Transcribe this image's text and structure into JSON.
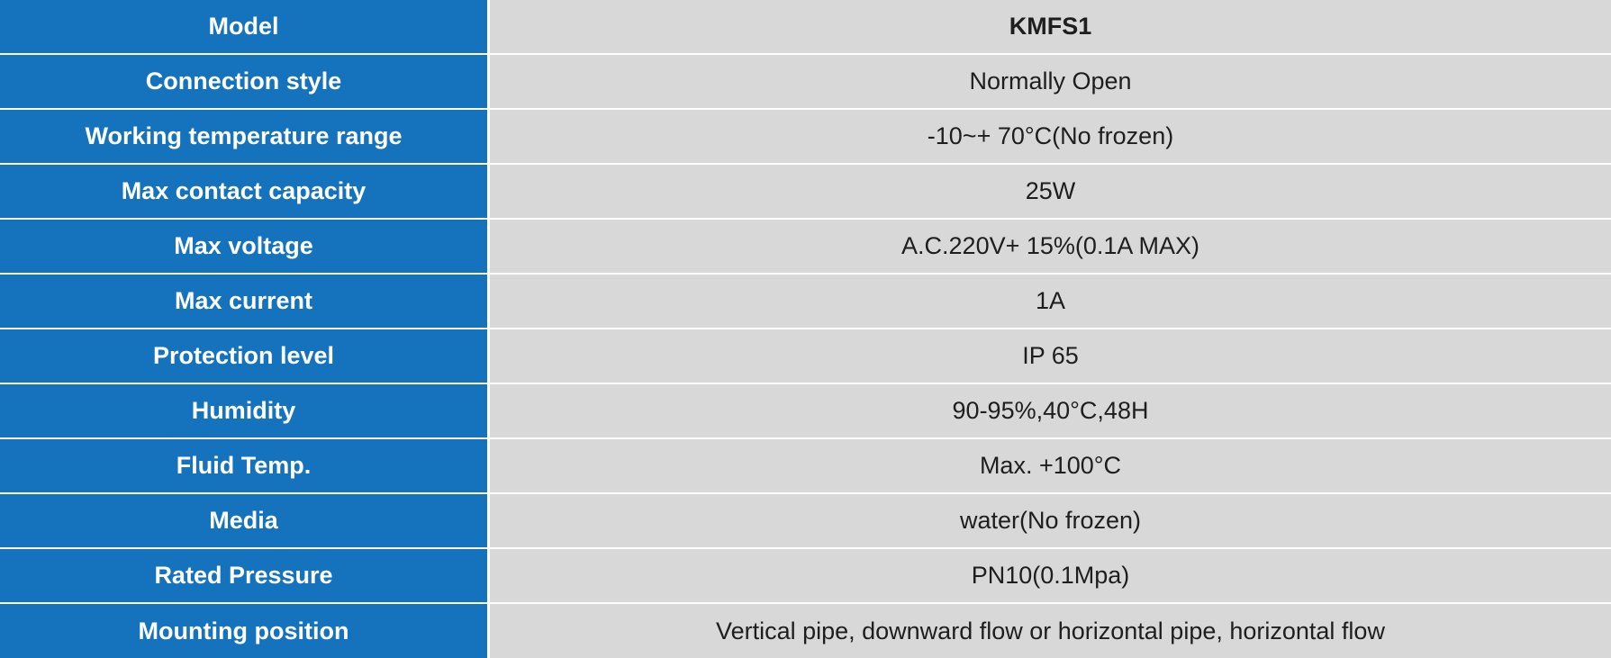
{
  "spec_table": {
    "rows": [
      {
        "label": "Model",
        "value": "KMFS1"
      },
      {
        "label": "Connection style",
        "value": "Normally Open"
      },
      {
        "label": "Working temperature range",
        "value": "-10~+ 70°C(No frozen)"
      },
      {
        "label": "Max contact capacity",
        "value": "25W"
      },
      {
        "label": "Max voltage",
        "value": "A.C.220V+ 15%(0.1A MAX)"
      },
      {
        "label": "Max current",
        "value": "1A"
      },
      {
        "label": "Protection level",
        "value": "IP 65"
      },
      {
        "label": "Humidity",
        "value": "90-95%,40°C,48H"
      },
      {
        "label": "Fluid Temp.",
        "value": "Max. +100°C"
      },
      {
        "label": "Media",
        "value": "water(No frozen)"
      },
      {
        "label": "Rated Pressure",
        "value": "PN10(0.1Mpa)"
      },
      {
        "label": "Mounting position",
        "value": "Vertical pipe, downward flow or horizontal pipe, horizontal flow"
      }
    ]
  },
  "colors": {
    "label_background": "#1572bd",
    "value_background": "#d8d8d8",
    "label_text": "#ffffff",
    "value_text": "#1e1e1e"
  }
}
